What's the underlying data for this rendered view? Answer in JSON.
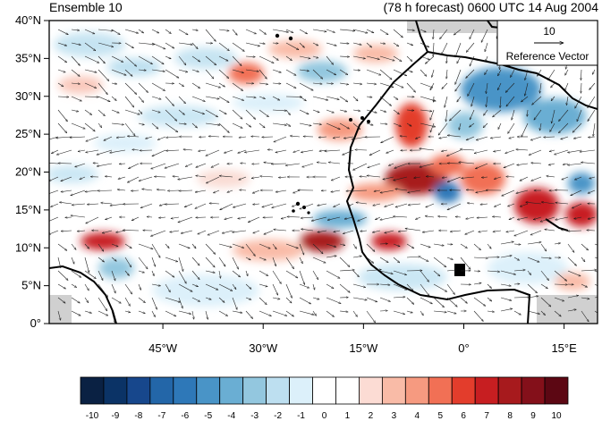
{
  "header": {
    "left_title": "Ensemble 10",
    "right_title": "(78 h forecast) 0600 UTC 14 Aug 2004"
  },
  "map": {
    "lon_range": [
      -62,
      20
    ],
    "lat_range": [
      0,
      40
    ],
    "lat_ticks": [
      {
        "value": 0,
        "label": "0°"
      },
      {
        "value": 5,
        "label": "5°N"
      },
      {
        "value": 10,
        "label": "10°N"
      },
      {
        "value": 15,
        "label": "15°N"
      },
      {
        "value": 20,
        "label": "20°N"
      },
      {
        "value": 25,
        "label": "25°N"
      },
      {
        "value": 30,
        "label": "30°N"
      },
      {
        "value": 35,
        "label": "35°N"
      },
      {
        "value": 40,
        "label": "40°N"
      }
    ],
    "lon_ticks": [
      {
        "value": -45,
        "label": "45°W"
      },
      {
        "value": -30,
        "label": "30°W"
      },
      {
        "value": -15,
        "label": "15°W"
      },
      {
        "value": 0,
        "label": "0°"
      },
      {
        "value": 15,
        "label": "15°E"
      }
    ],
    "reference_vector": {
      "value": "10",
      "label": "Reference Vector"
    }
  },
  "colorbar": {
    "labels": [
      "-10",
      "-9",
      "-8",
      "-7",
      "-6",
      "-5",
      "-4",
      "-3",
      "-2",
      "-1",
      "0",
      "1",
      "2",
      "3",
      "4",
      "5",
      "6",
      "7",
      "8",
      "9",
      "10"
    ],
    "colors": [
      "#0a2143",
      "#0b3366",
      "#17478c",
      "#2366a8",
      "#2e78b8",
      "#4994c7",
      "#6aaed3",
      "#93c7df",
      "#bddff0",
      "#dcf0fa",
      "#ffffff",
      "#ffffff",
      "#fcdcd4",
      "#f9bba7",
      "#f69a80",
      "#f17055",
      "#e33d2c",
      "#c71e21",
      "#a71a1d",
      "#84101a",
      "#5c0713"
    ]
  }
}
